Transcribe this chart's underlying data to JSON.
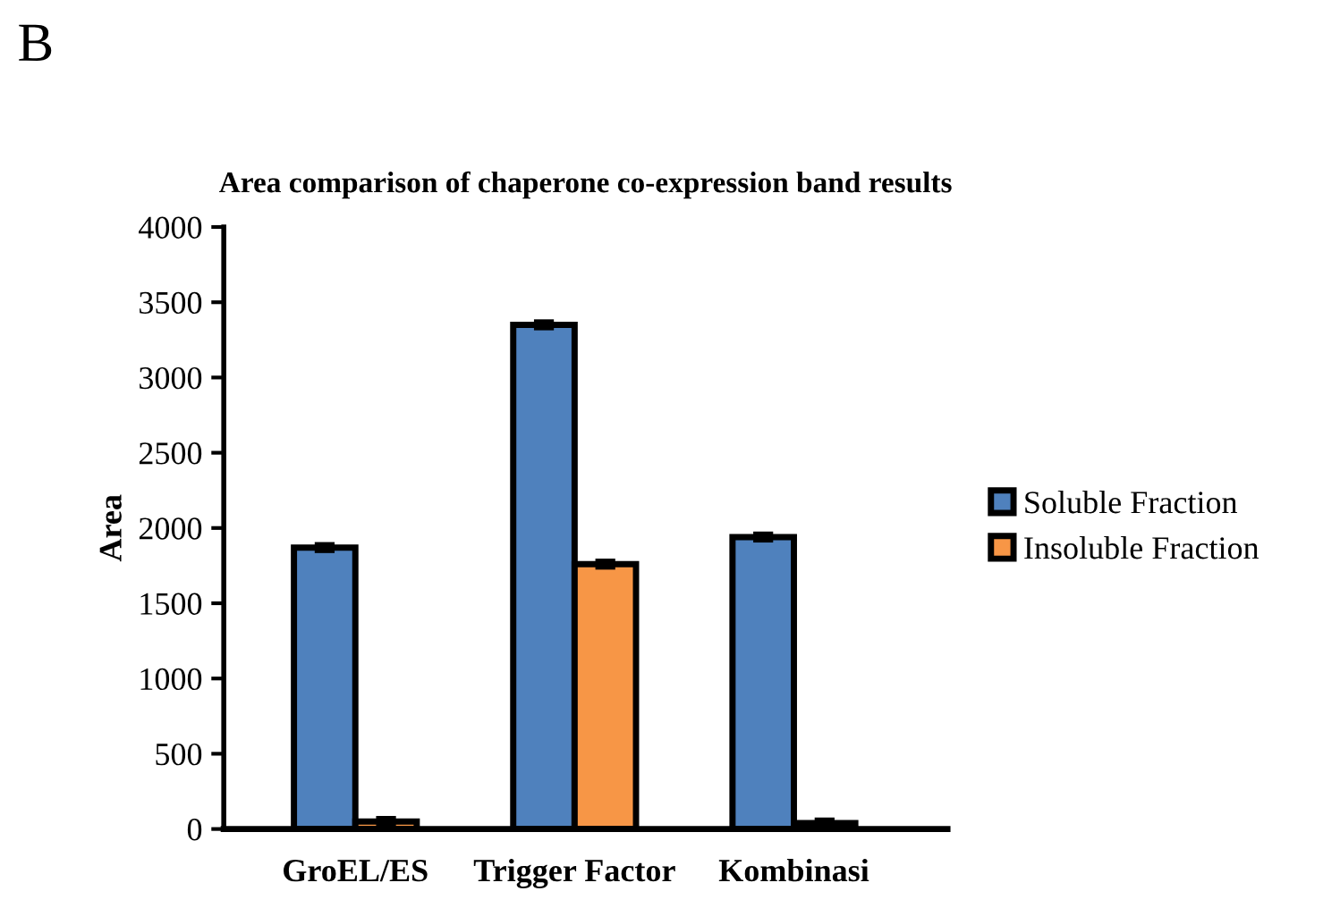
{
  "chart_data": {
    "type": "bar",
    "title": "Area comparison of chaperone co-expression band results",
    "ylabel": "Area",
    "annotations": [
      "B"
    ],
    "categories": [
      "GroEL/ES",
      "Trigger Factor",
      "Kombinasi"
    ],
    "series": [
      {
        "name": "Soluble Fraction",
        "color": "#4f81bd",
        "values": [
          1870,
          3350,
          1940
        ],
        "errors": [
          20,
          20,
          20
        ]
      },
      {
        "name": "Insoluble Fraction",
        "color": "#f79646",
        "values": [
          50,
          1760,
          40
        ],
        "errors": [
          20,
          20,
          20
        ]
      }
    ],
    "ylim": [
      0,
      4000
    ],
    "yticks": [
      0,
      500,
      1000,
      1500,
      2000,
      2500,
      3000,
      3500,
      4000
    ],
    "grid": false,
    "legend": "right"
  }
}
